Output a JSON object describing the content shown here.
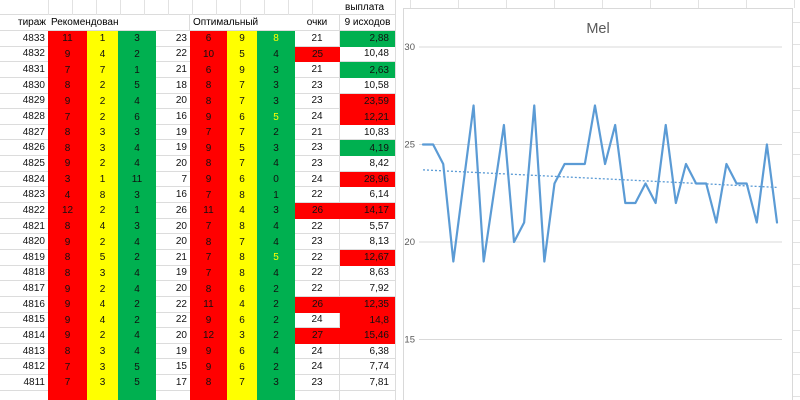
{
  "table": {
    "headers": {
      "payout": "выплата",
      "draw": "тираж",
      "recommended": "Рекомендован",
      "optimal": "Оптимальный",
      "points": "очки",
      "outcomes": "9 исходов"
    },
    "rows": [
      {
        "draw": "4833",
        "rec": [
          11,
          1,
          3
        ],
        "sum": 23,
        "opt": [
          6,
          9,
          8
        ],
        "optHot": true,
        "pts": 21,
        "ptsRed": false,
        "pay": "2,88",
        "payBg": "green"
      },
      {
        "draw": "4832",
        "rec": [
          9,
          4,
          2
        ],
        "sum": 22,
        "opt": [
          10,
          5,
          4
        ],
        "optHot": false,
        "pts": 25,
        "ptsRed": true,
        "pay": "10,48",
        "payBg": "none"
      },
      {
        "draw": "4831",
        "rec": [
          7,
          7,
          1
        ],
        "sum": 21,
        "opt": [
          6,
          9,
          3
        ],
        "optHot": false,
        "pts": 21,
        "ptsRed": false,
        "pay": "2,63",
        "payBg": "green"
      },
      {
        "draw": "4830",
        "rec": [
          8,
          2,
          5
        ],
        "sum": 18,
        "opt": [
          8,
          7,
          3
        ],
        "optHot": false,
        "pts": 23,
        "ptsRed": false,
        "pay": "10,58",
        "payBg": "none"
      },
      {
        "draw": "4829",
        "rec": [
          9,
          2,
          4
        ],
        "sum": 20,
        "opt": [
          8,
          7,
          3
        ],
        "optHot": false,
        "pts": 23,
        "ptsRed": false,
        "pay": "23,59",
        "payBg": "red"
      },
      {
        "draw": "4828",
        "rec": [
          7,
          2,
          6
        ],
        "sum": 16,
        "opt": [
          9,
          6,
          5
        ],
        "optHot": true,
        "pts": 24,
        "ptsRed": false,
        "pay": "12,21",
        "payBg": "red"
      },
      {
        "draw": "4827",
        "rec": [
          8,
          3,
          3
        ],
        "sum": 19,
        "opt": [
          7,
          7,
          2
        ],
        "optHot": false,
        "pts": 21,
        "ptsRed": false,
        "pay": "10,83",
        "payBg": "none"
      },
      {
        "draw": "4826",
        "rec": [
          8,
          3,
          4
        ],
        "sum": 19,
        "opt": [
          9,
          5,
          3
        ],
        "optHot": false,
        "pts": 23,
        "ptsRed": false,
        "pay": "4,19",
        "payBg": "green"
      },
      {
        "draw": "4825",
        "rec": [
          9,
          2,
          4
        ],
        "sum": 20,
        "opt": [
          8,
          7,
          4
        ],
        "optHot": false,
        "pts": 23,
        "ptsRed": false,
        "pay": "8,42",
        "payBg": "none"
      },
      {
        "draw": "4824",
        "rec": [
          3,
          1,
          11
        ],
        "sum": 7,
        "opt": [
          9,
          6,
          0
        ],
        "optHot": false,
        "pts": 24,
        "ptsRed": false,
        "pay": "28,96",
        "payBg": "red"
      },
      {
        "draw": "4823",
        "rec": [
          4,
          8,
          3
        ],
        "sum": 16,
        "opt": [
          7,
          8,
          1
        ],
        "optHot": false,
        "pts": 22,
        "ptsRed": false,
        "pay": "6,14",
        "payBg": "none"
      },
      {
        "draw": "4822",
        "rec": [
          12,
          2,
          1
        ],
        "sum": 26,
        "opt": [
          11,
          4,
          3
        ],
        "optHot": false,
        "pts": 26,
        "ptsRed": true,
        "pay": "14,17",
        "payBg": "red"
      },
      {
        "draw": "4821",
        "rec": [
          8,
          4,
          3
        ],
        "sum": 20,
        "opt": [
          7,
          8,
          4
        ],
        "optHot": false,
        "pts": 22,
        "ptsRed": false,
        "pay": "5,57",
        "payBg": "none"
      },
      {
        "draw": "4820",
        "rec": [
          9,
          2,
          4
        ],
        "sum": 20,
        "opt": [
          8,
          7,
          4
        ],
        "optHot": false,
        "pts": 23,
        "ptsRed": false,
        "pay": "8,13",
        "payBg": "none"
      },
      {
        "draw": "4819",
        "rec": [
          8,
          5,
          2
        ],
        "sum": 21,
        "opt": [
          7,
          8,
          5
        ],
        "optHot": true,
        "pts": 22,
        "ptsRed": false,
        "pay": "12,67",
        "payBg": "red"
      },
      {
        "draw": "4818",
        "rec": [
          8,
          3,
          4
        ],
        "sum": 19,
        "opt": [
          7,
          8,
          4
        ],
        "optHot": false,
        "pts": 22,
        "ptsRed": false,
        "pay": "8,63",
        "payBg": "none"
      },
      {
        "draw": "4817",
        "rec": [
          9,
          2,
          4
        ],
        "sum": 20,
        "opt": [
          8,
          6,
          2
        ],
        "optHot": false,
        "pts": 22,
        "ptsRed": false,
        "pay": "7,92",
        "payBg": "none"
      },
      {
        "draw": "4816",
        "rec": [
          9,
          4,
          2
        ],
        "sum": 22,
        "opt": [
          11,
          4,
          2
        ],
        "optHot": false,
        "pts": 26,
        "ptsRed": true,
        "pay": "12,35",
        "payBg": "red"
      },
      {
        "draw": "4815",
        "rec": [
          9,
          4,
          2
        ],
        "sum": 22,
        "opt": [
          9,
          6,
          2
        ],
        "optHot": false,
        "pts": 24,
        "ptsRed": false,
        "pay": "14,8",
        "payBg": "red"
      },
      {
        "draw": "4814",
        "rec": [
          9,
          2,
          4
        ],
        "sum": 20,
        "opt": [
          12,
          3,
          2
        ],
        "optHot": false,
        "pts": 27,
        "ptsRed": true,
        "pay": "15,46",
        "payBg": "red"
      },
      {
        "draw": "4813",
        "rec": [
          8,
          3,
          4
        ],
        "sum": 19,
        "opt": [
          9,
          6,
          4
        ],
        "optHot": false,
        "pts": 24,
        "ptsRed": false,
        "pay": "6,38",
        "payBg": "none"
      },
      {
        "draw": "4812",
        "rec": [
          7,
          3,
          5
        ],
        "sum": 15,
        "opt": [
          9,
          6,
          2
        ],
        "optHot": false,
        "pts": 24,
        "ptsRed": false,
        "pay": "7,74",
        "payBg": "none"
      },
      {
        "draw": "4811",
        "rec": [
          7,
          3,
          5
        ],
        "sum": 17,
        "opt": [
          8,
          7,
          3
        ],
        "optHot": false,
        "pts": 23,
        "ptsRed": false,
        "pay": "7,81",
        "payBg": "none"
      }
    ],
    "colors": {
      "red": "#FF0000",
      "yellow": "#FFFF00",
      "green": "#00B050",
      "hot_text": "#FFFF00"
    }
  },
  "chart_data": {
    "type": "line",
    "title": "Mel",
    "series": [
      {
        "name": "Mel",
        "values": [
          25,
          25,
          24,
          19,
          23,
          27,
          19,
          22.5,
          26,
          20,
          21,
          27,
          19,
          23,
          24,
          24,
          24,
          27,
          24,
          26,
          22,
          22,
          23,
          22,
          26,
          22,
          24,
          23,
          23,
          21,
          24,
          23,
          23,
          21,
          25,
          21
        ]
      }
    ],
    "trendline": {
      "start": 23.7,
      "end": 22.8,
      "style": "dotted"
    },
    "yticks": [
      30,
      25,
      20,
      15
    ],
    "ylim_visible": [
      13.5,
      31.5
    ],
    "grid": true,
    "legend": "none",
    "xlabel": "",
    "ylabel": "",
    "line_color": "#5B9BD5",
    "gridline_color": "#d9d9d9",
    "title_color": "#595959"
  }
}
